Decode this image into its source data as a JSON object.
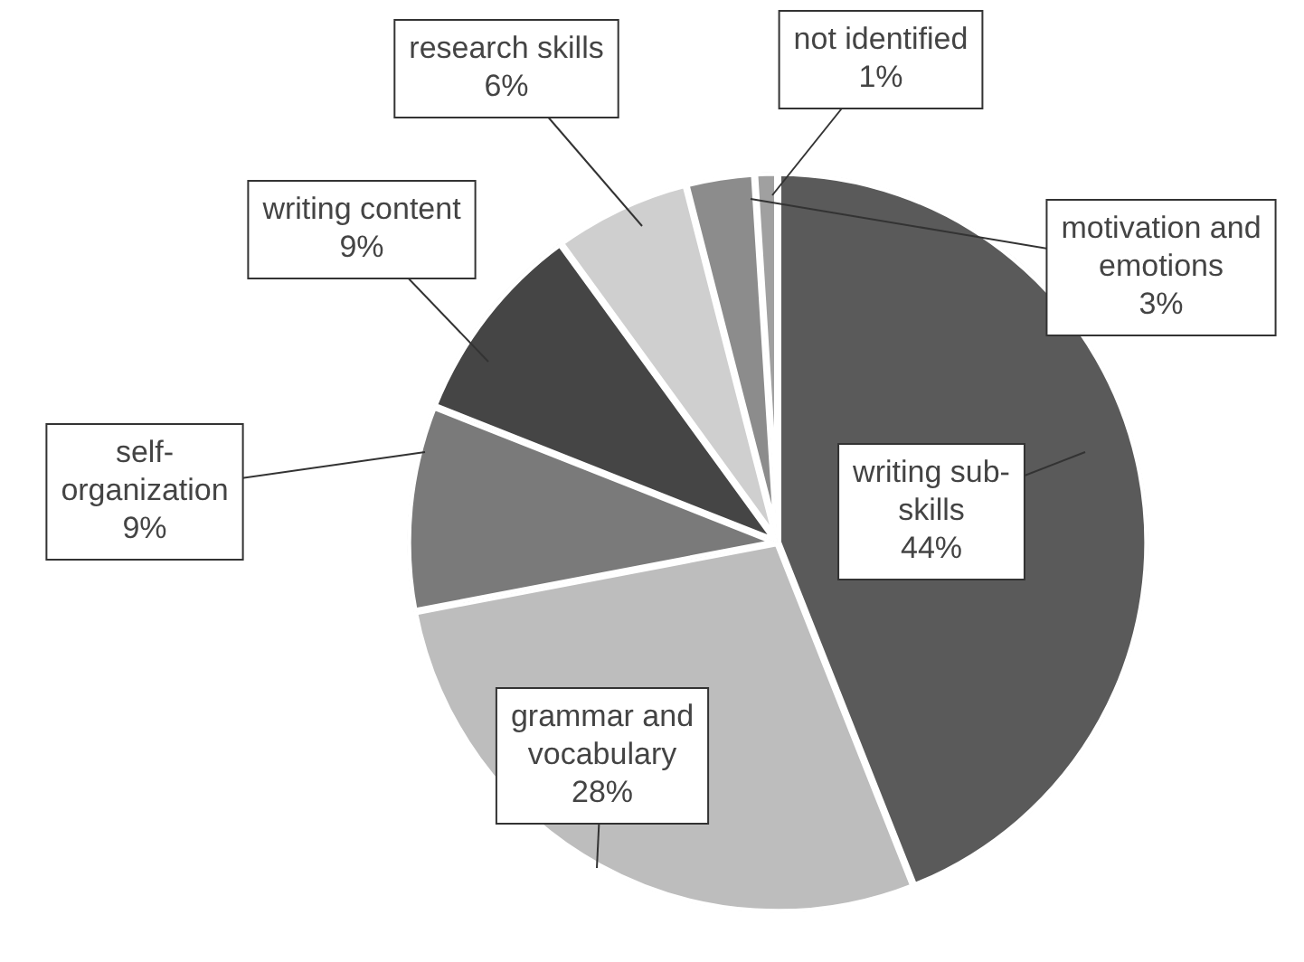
{
  "chart_data": {
    "type": "pie",
    "categories": [
      "writing sub-skills",
      "grammar and vocabulary",
      "self-organization",
      "writing content",
      "research skills",
      "motivation and emotions",
      "not identified"
    ],
    "values": [
      44,
      28,
      9,
      9,
      6,
      3,
      1
    ],
    "value_labels": [
      "44%",
      "28%",
      "9%",
      "9%",
      "6%",
      "3%",
      "1%"
    ],
    "colors": [
      "#5a5a5a",
      "#bdbdbd",
      "#7a7a7a",
      "#454545",
      "#cfcfcf",
      "#8c8c8c",
      "#a0a0a0"
    ]
  }
}
